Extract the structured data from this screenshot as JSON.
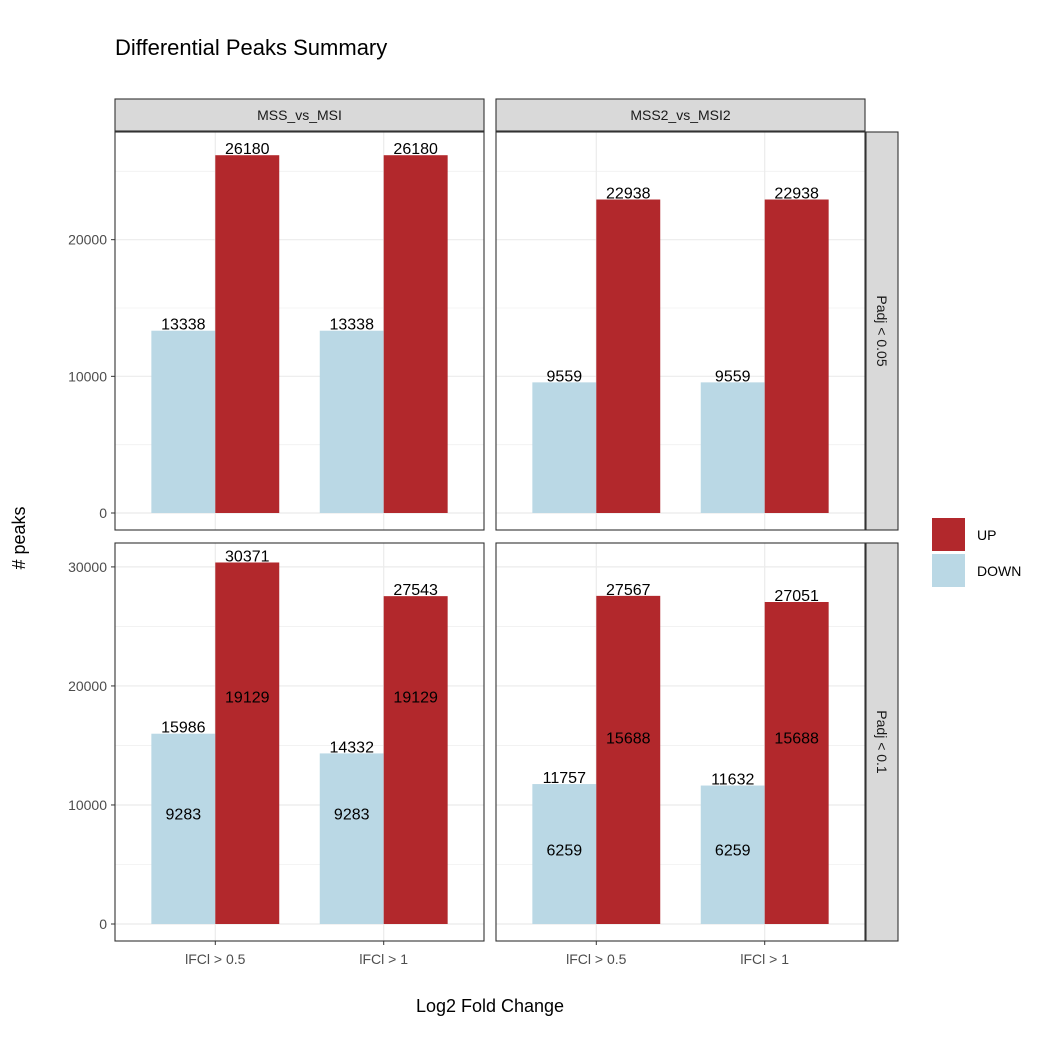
{
  "chart_data": {
    "type": "bar",
    "title": "Differential Peaks Summary",
    "xlabel": "Log2 Fold Change",
    "ylabel": "# peaks",
    "categories": [
      "lFCl > 0.5",
      "lFCl > 1"
    ],
    "column_facets": [
      "MSS_vs_MSI",
      "MSS2_vs_MSI2"
    ],
    "row_facets": [
      "Padj < 0.05",
      "Padj < 0.1"
    ],
    "legend": {
      "position": "right",
      "entries": [
        {
          "name": "UP",
          "color": "#b2282c"
        },
        {
          "name": "DOWN",
          "color": "#bad8e5"
        }
      ]
    },
    "grid": true,
    "panels": [
      {
        "row": "Padj < 0.05",
        "col": "MSS_vs_MSI",
        "ylim": [
          0,
          27000
        ],
        "yticks": [
          0,
          10000,
          20000
        ],
        "series": [
          {
            "name": "DOWN",
            "values": [
              13338,
              13338
            ]
          },
          {
            "name": "UP",
            "values": [
              26180,
              26180
            ]
          }
        ],
        "inner_labels": {
          "DOWN": [],
          "UP": []
        }
      },
      {
        "row": "Padj < 0.05",
        "col": "MSS2_vs_MSI2",
        "ylim": [
          0,
          27000
        ],
        "yticks": [
          0,
          10000,
          20000
        ],
        "series": [
          {
            "name": "DOWN",
            "values": [
              9559,
              9559
            ]
          },
          {
            "name": "UP",
            "values": [
              22938,
              22938
            ]
          }
        ],
        "inner_labels": {
          "DOWN": [],
          "UP": []
        }
      },
      {
        "row": "Padj < 0.1",
        "col": "MSS_vs_MSI",
        "ylim": [
          0,
          31000
        ],
        "yticks": [
          0,
          10000,
          20000,
          30000
        ],
        "series": [
          {
            "name": "DOWN",
            "values": [
              15986,
              14332
            ]
          },
          {
            "name": "UP",
            "values": [
              30371,
              27543
            ]
          }
        ],
        "inner_labels": {
          "DOWN": [
            9283,
            9283
          ],
          "UP": [
            19129,
            19129
          ]
        }
      },
      {
        "row": "Padj < 0.1",
        "col": "MSS2_vs_MSI2",
        "ylim": [
          0,
          31000
        ],
        "yticks": [
          0,
          10000,
          20000,
          30000
        ],
        "series": [
          {
            "name": "DOWN",
            "values": [
              11757,
              11632
            ]
          },
          {
            "name": "UP",
            "values": [
              27567,
              27051
            ]
          }
        ],
        "inner_labels": {
          "DOWN": [
            6259,
            6259
          ],
          "UP": [
            15688,
            15688
          ]
        }
      }
    ]
  }
}
